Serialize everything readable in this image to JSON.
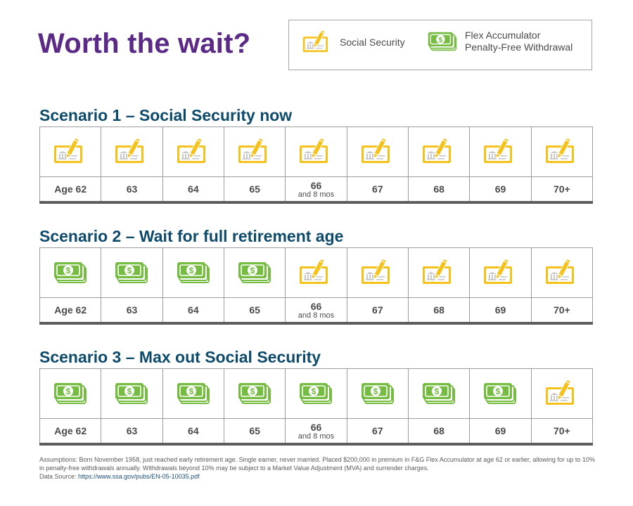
{
  "title": "Worth the wait?",
  "legend": {
    "social_security": "Social Security",
    "flex_line1": "Flex Accumulator",
    "flex_line2": "Penalty-Free Withdrawal"
  },
  "ages": [
    {
      "main": "Age 62",
      "sub": ""
    },
    {
      "main": "63",
      "sub": ""
    },
    {
      "main": "64",
      "sub": ""
    },
    {
      "main": "65",
      "sub": ""
    },
    {
      "main": "66",
      "sub": "and 8 mos"
    },
    {
      "main": "67",
      "sub": ""
    },
    {
      "main": "68",
      "sub": ""
    },
    {
      "main": "69",
      "sub": ""
    },
    {
      "main": "70+",
      "sub": ""
    }
  ],
  "scenarios": [
    {
      "title": "Scenario 1 – Social Security now",
      "icons": [
        "check-icon",
        "check-icon",
        "check-icon",
        "check-icon",
        "check-icon",
        "check-icon",
        "check-icon",
        "check-icon",
        "check-icon"
      ]
    },
    {
      "title": "Scenario 2 – Wait for full retirement age",
      "icons": [
        "cash-icon",
        "cash-icon",
        "cash-icon",
        "cash-icon",
        "check-icon",
        "check-icon",
        "check-icon",
        "check-icon",
        "check-icon"
      ]
    },
    {
      "title": "Scenario 3 – Max out Social Security",
      "icons": [
        "cash-icon",
        "cash-icon",
        "cash-icon",
        "cash-icon",
        "cash-icon",
        "cash-icon",
        "cash-icon",
        "cash-icon",
        "check-icon"
      ]
    }
  ],
  "footnote": {
    "text": "Assumptions: Born November 1958, just reached early retirement age. Single earner, never married. Placed $200,000 in premium in F&G Flex Accumulator at age 62 or earlier, allowing for up to 10% in penalty-free withdrawals annually. Withdrawals beyond 10% may be subject to a Market Value Adjustment (MVA) and surrender charges.",
    "source_label": "Data Source:",
    "source_link": "https://www.ssa.gov/pubs/EN-05-10035.pdf"
  },
  "colors": {
    "title": "#5b2a86",
    "heading": "#0d4a6b",
    "check_yellow": "#f5c21b",
    "cash_green": "#76bc43"
  }
}
